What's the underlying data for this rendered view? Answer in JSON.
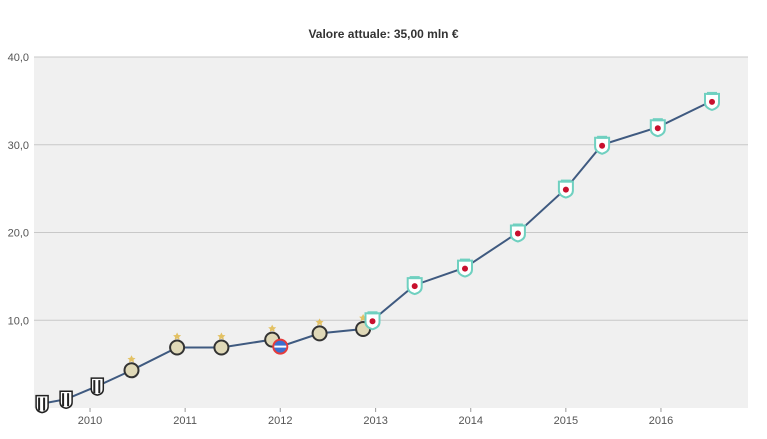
{
  "chart_data": {
    "type": "line",
    "title": "Valore attuale: 35,00 mln €",
    "xlabel": "",
    "ylabel": "",
    "ylim": [
      0,
      40
    ],
    "xlim": [
      "2009-07-01",
      "2016-12-31"
    ],
    "y_ticks": [
      "10,0",
      "20,0",
      "30,0",
      "40,0"
    ],
    "x_ticks": [
      "2010",
      "2011",
      "2012",
      "2013",
      "2014",
      "2015",
      "2016"
    ],
    "grid": true,
    "legend": "none",
    "colors": {
      "plot_background": "#f0f0f0",
      "line": "#3f5a80",
      "grid": "#c8c8c8",
      "club_neutral": "#e0d9b8",
      "club_liverpool": "#6fd0c0",
      "club_liverpool_crest": "#c8102e",
      "club_red": "#e63b3b"
    },
    "series": [
      {
        "points": [
          {
            "x": "2009-08-01",
            "y": 0.5,
            "club": "juventus-crest-icon"
          },
          {
            "x": "2009-11-01",
            "y": 1.0,
            "club": "juventus-crest-icon"
          },
          {
            "x": "2010-03-01",
            "y": 2.5,
            "club": "juventus-crest-icon"
          },
          {
            "x": "2010-07-10",
            "y": 4.3,
            "club": "parma-crest-icon"
          },
          {
            "x": "2011-01-01",
            "y": 6.9,
            "club": "parma-crest-icon"
          },
          {
            "x": "2011-06-20",
            "y": 6.9,
            "club": "parma-crest-icon"
          },
          {
            "x": "2012-01-01",
            "y": 7.8,
            "club": "parma-crest-icon"
          },
          {
            "x": "2012-02-01",
            "y": 7.0,
            "club": "sampdoria-crest-icon"
          },
          {
            "x": "2012-07-01",
            "y": 8.5,
            "club": "parma-crest-icon"
          },
          {
            "x": "2012-12-15",
            "y": 9.0,
            "club": "parma-crest-icon"
          },
          {
            "x": "2013-01-20",
            "y": 10.0,
            "club": "liverpool-crest-icon"
          },
          {
            "x": "2013-07-01",
            "y": 14.0,
            "club": "liverpool-crest-icon"
          },
          {
            "x": "2014-01-10",
            "y": 16.0,
            "club": "liverpool-crest-icon"
          },
          {
            "x": "2014-08-01",
            "y": 20.0,
            "club": "liverpool-crest-icon"
          },
          {
            "x": "2015-02-01",
            "y": 25.0,
            "club": "liverpool-crest-icon"
          },
          {
            "x": "2015-06-20",
            "y": 30.0,
            "club": "liverpool-crest-icon"
          },
          {
            "x": "2016-01-20",
            "y": 32.0,
            "club": "liverpool-crest-icon"
          },
          {
            "x": "2016-08-15",
            "y": 35.0,
            "club": "liverpool-crest-icon"
          }
        ]
      }
    ]
  }
}
